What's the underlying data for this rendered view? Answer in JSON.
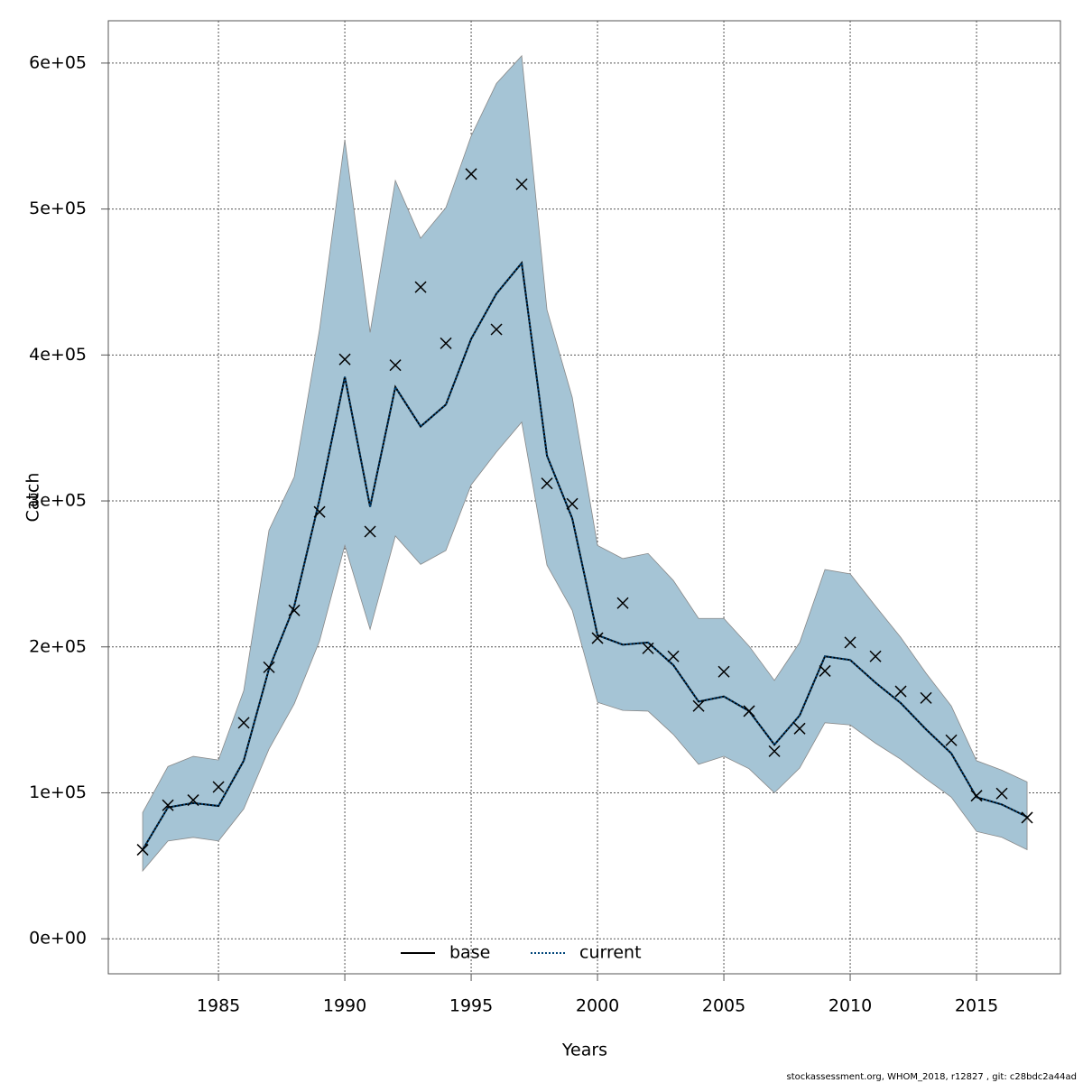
{
  "chart_data": {
    "type": "line",
    "x_label": "Years",
    "y_label": "Catch",
    "x": [
      1982,
      1983,
      1984,
      1985,
      1986,
      1987,
      1988,
      1989,
      1990,
      1991,
      1992,
      1993,
      1994,
      1995,
      1996,
      1997,
      1998,
      1999,
      2000,
      2001,
      2002,
      2003,
      2004,
      2005,
      2006,
      2007,
      2008,
      2009,
      2010,
      2011,
      2012,
      2013,
      2014,
      2015,
      2016,
      2017
    ],
    "series": [
      {
        "name": "current",
        "color": "#00457a",
        "band_color": "#a5c4d5",
        "values": [
          61000,
          90000,
          93000,
          91000,
          122000,
          185000,
          228000,
          301000,
          385000,
          296000,
          378000,
          351000,
          366000,
          411000,
          442000,
          463000,
          331000,
          288000,
          208000,
          201500,
          203000,
          187500,
          162500,
          166000,
          156000,
          133000,
          153000,
          193500,
          191000,
          175500,
          161500,
          143500,
          127000,
          97000,
          92000,
          83500
        ],
        "upper": [
          86500,
          118000,
          125000,
          122500,
          170000,
          280000,
          316500,
          417500,
          547500,
          415500,
          519500,
          480000,
          501000,
          550000,
          586000,
          605000,
          431000,
          371000,
          269500,
          260500,
          264000,
          245500,
          219500,
          219500,
          200500,
          177000,
          203000,
          253000,
          250000,
          228000,
          206500,
          182000,
          159500,
          122000,
          115500,
          107500
        ],
        "lower": [
          46500,
          67000,
          69500,
          67000,
          89000,
          130000,
          161000,
          204000,
          269500,
          212000,
          276000,
          256500,
          266000,
          311000,
          333500,
          354000,
          256000,
          225000,
          162000,
          156500,
          156000,
          140000,
          119500,
          125000,
          116500,
          100000,
          117000,
          148000,
          146500,
          134000,
          123000,
          109500,
          97000,
          73500,
          69500,
          61000
        ]
      }
    ],
    "observed": {
      "color": "#000000",
      "values": [
        61000,
        91500,
        95000,
        104000,
        148000,
        186000,
        225000,
        292500,
        397000,
        279000,
        393000,
        446500,
        408000,
        524000,
        417500,
        517000,
        312000,
        298000,
        206000,
        230000,
        199000,
        193500,
        159500,
        183000,
        156000,
        128500,
        144000,
        183500,
        203000,
        193500,
        169500,
        165000,
        136000,
        98000,
        99500,
        83000
      ]
    },
    "legend": [
      {
        "name": "base",
        "color": "#000000",
        "dash": "solid"
      },
      {
        "name": "current",
        "color": "#00457a",
        "dash": "dotted"
      }
    ],
    "legend_position": "bottom",
    "xlim": [
      1980.64,
      2018.32
    ],
    "xticks": [
      1985,
      1990,
      1995,
      2000,
      2005,
      2010,
      2015
    ],
    "ylim": [
      -24000,
      629000
    ],
    "yticks": [
      {
        "value": 0,
        "label": "0e+00"
      },
      {
        "value": 100000,
        "label": "1e+05"
      },
      {
        "value": 200000,
        "label": "2e+05"
      },
      {
        "value": 300000,
        "label": "3e+05"
      },
      {
        "value": 400000,
        "label": "4e+05"
      },
      {
        "value": 500000,
        "label": "5e+05"
      },
      {
        "value": 600000,
        "label": "6e+05"
      }
    ],
    "grid": true,
    "footer": "stockassessment.org, WHOM_2018, r12827 , git: c28bdc2a44ad"
  }
}
